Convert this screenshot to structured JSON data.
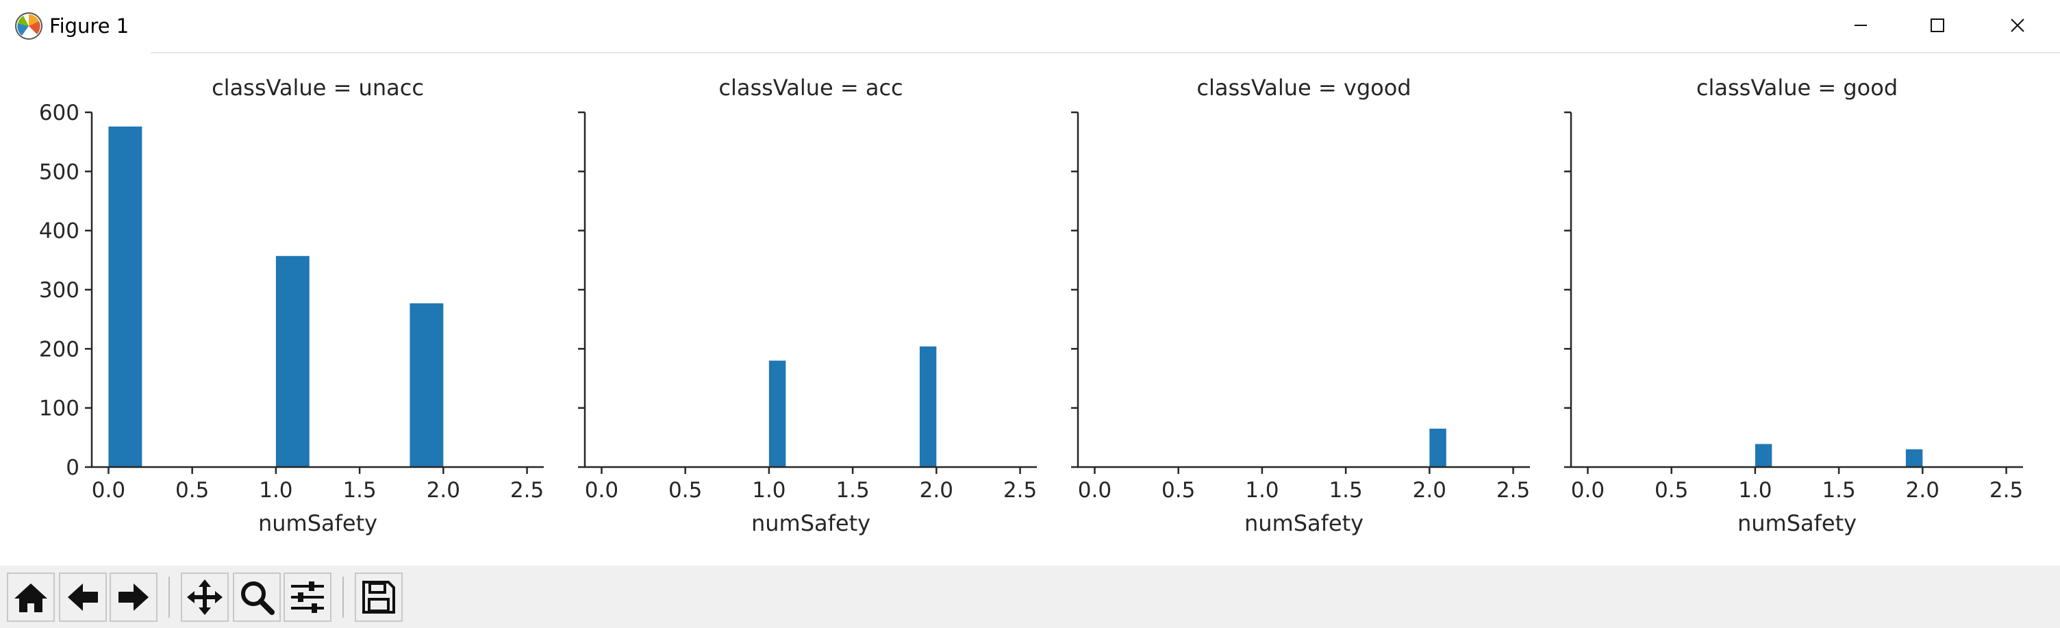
{
  "window": {
    "title": "Figure 1",
    "controls": [
      "minimize",
      "maximize",
      "close"
    ]
  },
  "toolbar": {
    "buttons": [
      {
        "name": "home",
        "icon": "home-icon"
      },
      {
        "name": "back",
        "icon": "arrow-left-icon"
      },
      {
        "name": "forward",
        "icon": "arrow-right-icon"
      },
      {
        "name": "pan",
        "icon": "move-icon"
      },
      {
        "name": "zoom",
        "icon": "magnifier-icon"
      },
      {
        "name": "configure-subplots",
        "icon": "sliders-icon"
      },
      {
        "name": "save",
        "icon": "floppy-disk-icon"
      }
    ]
  },
  "chart_data": {
    "type": "bar",
    "bar_color": "#1f77b4",
    "sharey": true,
    "ylim": [
      0,
      600
    ],
    "yticks": [
      "0",
      "100",
      "200",
      "300",
      "400",
      "500",
      "600"
    ],
    "xlim": [
      -0.1,
      2.6
    ],
    "xticks": [
      "0.0",
      "0.5",
      "1.0",
      "1.5",
      "2.0",
      "2.5"
    ],
    "xtick_values": [
      0,
      0.5,
      1,
      1.5,
      2,
      2.5
    ],
    "panels": [
      {
        "title": "classValue = unacc",
        "xlabel": "numSafety",
        "bars": [
          {
            "x0": 0.0,
            "x1": 0.2,
            "value": 576
          },
          {
            "x0": 1.0,
            "x1": 1.2,
            "value": 357
          },
          {
            "x0": 1.8,
            "x1": 2.0,
            "value": 277
          }
        ]
      },
      {
        "title": "classValue = acc",
        "xlabel": "numSafety",
        "bars": [
          {
            "x0": 1.0,
            "x1": 1.1,
            "value": 180
          },
          {
            "x0": 1.9,
            "x1": 2.0,
            "value": 204
          }
        ]
      },
      {
        "title": "classValue = vgood",
        "xlabel": "numSafety",
        "bars": [
          {
            "x0": 2.0,
            "x1": 2.1,
            "value": 65
          }
        ]
      },
      {
        "title": "classValue = good",
        "xlabel": "numSafety",
        "bars": [
          {
            "x0": 1.0,
            "x1": 1.1,
            "value": 39
          },
          {
            "x0": 1.9,
            "x1": 2.0,
            "value": 30
          }
        ]
      }
    ]
  }
}
